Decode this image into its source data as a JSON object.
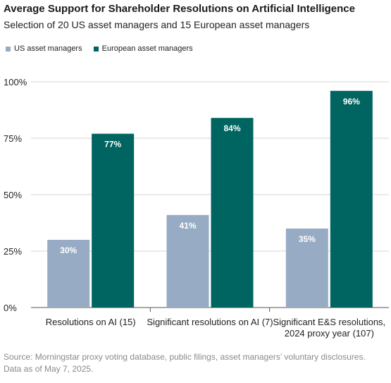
{
  "title": "Average Support for Shareholder Resolutions on Artificial Intelligence",
  "subtitle": "Selection of 20 US asset managers and 15 European asset managers",
  "source": "Source: Morningstar proxy voting database, public filings, asset managers’ voluntary disclosures. Data as of May 7, 2025.",
  "colors": {
    "us": "#98abc4",
    "europe": "#006461",
    "grid": "#d4d4d4",
    "axis": "#555555"
  },
  "chart_data": {
    "type": "bar",
    "categories": [
      [
        "Resolutions on AI (15)"
      ],
      [
        "Significant resolutions on AI (7)"
      ],
      [
        "Significant E&S resolutions,",
        "2024 proxy year (107)"
      ]
    ],
    "series": [
      {
        "name": "US asset managers",
        "values": [
          30,
          41,
          35
        ],
        "labels": [
          "30%",
          "41%",
          "35%"
        ]
      },
      {
        "name": "European asset managers",
        "values": [
          77,
          84,
          96
        ],
        "labels": [
          "77%",
          "84%",
          "96%"
        ]
      }
    ],
    "ylim": [
      0,
      100
    ],
    "yticks": [
      0,
      25,
      50,
      75,
      100
    ],
    "ytick_labels": [
      "0%",
      "25%",
      "50%",
      "75%",
      "100%"
    ],
    "grid": true,
    "legend_position": "top-left"
  }
}
